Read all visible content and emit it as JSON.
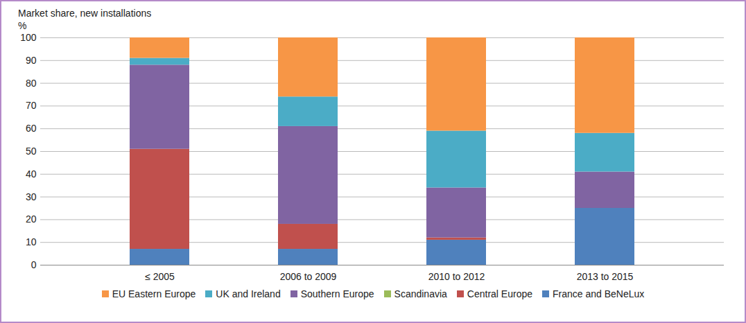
{
  "chart_data": {
    "type": "bar",
    "stacked": true,
    "ylabel": "Market share, new installations",
    "ylabel_unit": "%",
    "categories": [
      "≤ 2005",
      "2006 to 2009",
      "2010 to 2012",
      "2013 to 2015"
    ],
    "series": [
      {
        "name": "EU Eastern Europe",
        "color": "#f79646",
        "values": [
          9,
          26,
          41,
          42
        ]
      },
      {
        "name": "UK and Ireland",
        "color": "#4bacc6",
        "values": [
          3,
          13,
          25,
          17
        ]
      },
      {
        "name": "Southern Europe",
        "color": "#8064a2",
        "values": [
          37,
          43,
          22,
          16
        ]
      },
      {
        "name": "Scandinavia",
        "color": "#9bbb59",
        "values": [
          0,
          0,
          0,
          0
        ]
      },
      {
        "name": "Central Europe",
        "color": "#c0504d",
        "values": [
          44,
          11,
          1,
          0
        ]
      },
      {
        "name": "France and BeNeLux",
        "color": "#4f81bd",
        "values": [
          7,
          7,
          11,
          25
        ]
      }
    ],
    "ylim": [
      0,
      100
    ],
    "yticks": [
      0,
      10,
      20,
      30,
      40,
      50,
      60,
      70,
      80,
      90,
      100
    ],
    "grid": true,
    "legend": "bottom"
  }
}
